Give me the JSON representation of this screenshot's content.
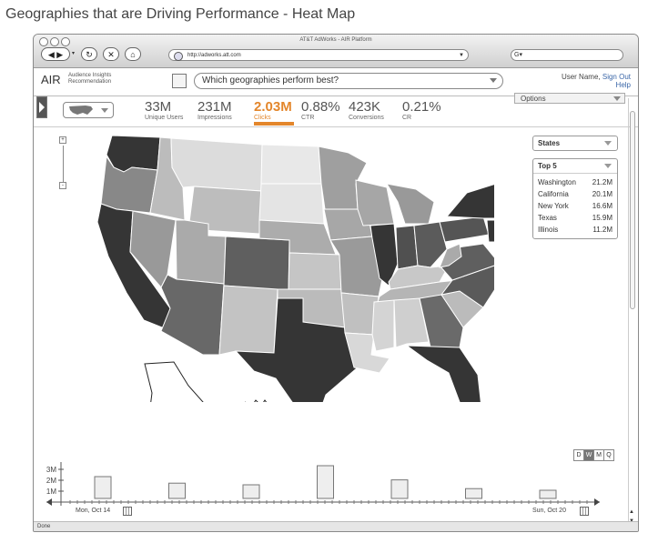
{
  "page_title": "Geographies that are Driving Performance - Heat Map",
  "browser": {
    "window_title": "AT&T AdWorks - AIR Platform",
    "url": "http://adworks.att.com",
    "nav_icons": [
      "back-icon",
      "forward-icon",
      "reload-icon",
      "stop-icon",
      "home-icon"
    ]
  },
  "app": {
    "logo": "AIR",
    "logo_sub_line1": "Audience Insights",
    "logo_sub_line2": "Recommendation",
    "query": "Which geographies perform best?",
    "user_name": "User Name,",
    "sign_out": "Sign Out",
    "help": "Help",
    "options": "Options"
  },
  "metrics": [
    {
      "value": "33M",
      "label": "Unique Users",
      "active": false
    },
    {
      "value": "231M",
      "label": "Impressions",
      "active": false
    },
    {
      "value": "2.03M",
      "label": "Clicks",
      "active": true
    },
    {
      "value": "0.88%",
      "label": "CTR",
      "active": false
    },
    {
      "value": "423K",
      "label": "Conversions",
      "active": false
    },
    {
      "value": "0.21%",
      "label": "CR",
      "active": false
    }
  ],
  "geo_select": "States",
  "top5": {
    "title": "Top 5",
    "rows": [
      {
        "name": "Washington",
        "value": "21.2M"
      },
      {
        "name": "California",
        "value": "20.1M"
      },
      {
        "name": "New York",
        "value": "16.6M"
      },
      {
        "name": "Texas",
        "value": "15.9M"
      },
      {
        "name": "Illinois",
        "value": "11.2M"
      }
    ]
  },
  "zoom": {
    "plus": "+",
    "minus": "-"
  },
  "timeline": {
    "y_ticks": [
      "3M",
      "2M",
      "1M"
    ],
    "start_date": "Mon, Oct 14",
    "end_date": "Sun, Oct 20",
    "range_buttons": [
      "D",
      "W",
      "M",
      "Q"
    ],
    "active_range": "W",
    "bars": [
      2.0,
      1.4,
      1.25,
      3.0,
      1.7,
      0.9,
      0.75
    ]
  },
  "status": "Done",
  "colors": {
    "accent": "#e3862b"
  }
}
